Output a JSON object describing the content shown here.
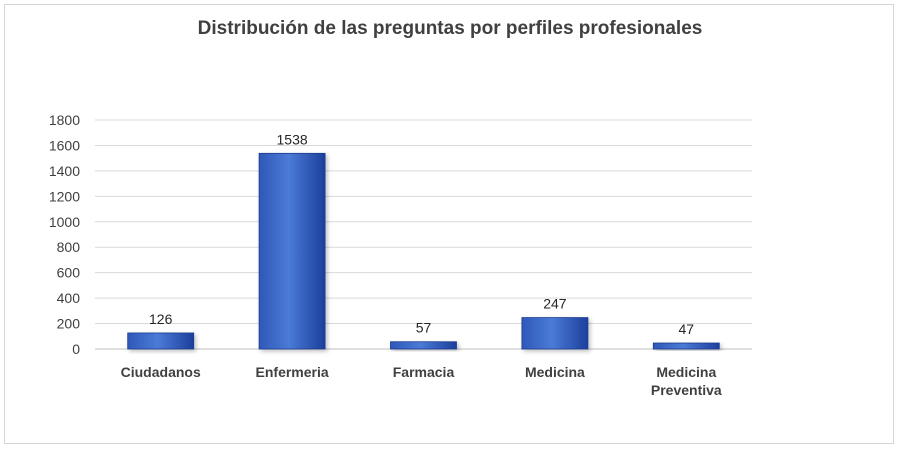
{
  "chart_data": {
    "type": "bar",
    "title": "Distribución de las preguntas por perfiles profesionales",
    "xlabel": "",
    "ylabel": "",
    "categories": [
      [
        "Ciudadanos"
      ],
      [
        "Enfermeria"
      ],
      [
        "Farmacia"
      ],
      [
        "Medicina"
      ],
      [
        "Medicina",
        "Preventiva"
      ]
    ],
    "values": [
      126,
      1538,
      57,
      247,
      47
    ],
    "ylim": [
      0,
      1800
    ],
    "yticks": [
      0,
      200,
      400,
      600,
      800,
      1000,
      1200,
      1400,
      1600,
      1800
    ],
    "grid": true,
    "legend": "none",
    "data_labels": true,
    "colors": {
      "bar_light": "#4a7bd6",
      "bar_dark": "#1c3f9c",
      "grid": "#d9d9d9",
      "axis": "#bfbfbf"
    }
  }
}
